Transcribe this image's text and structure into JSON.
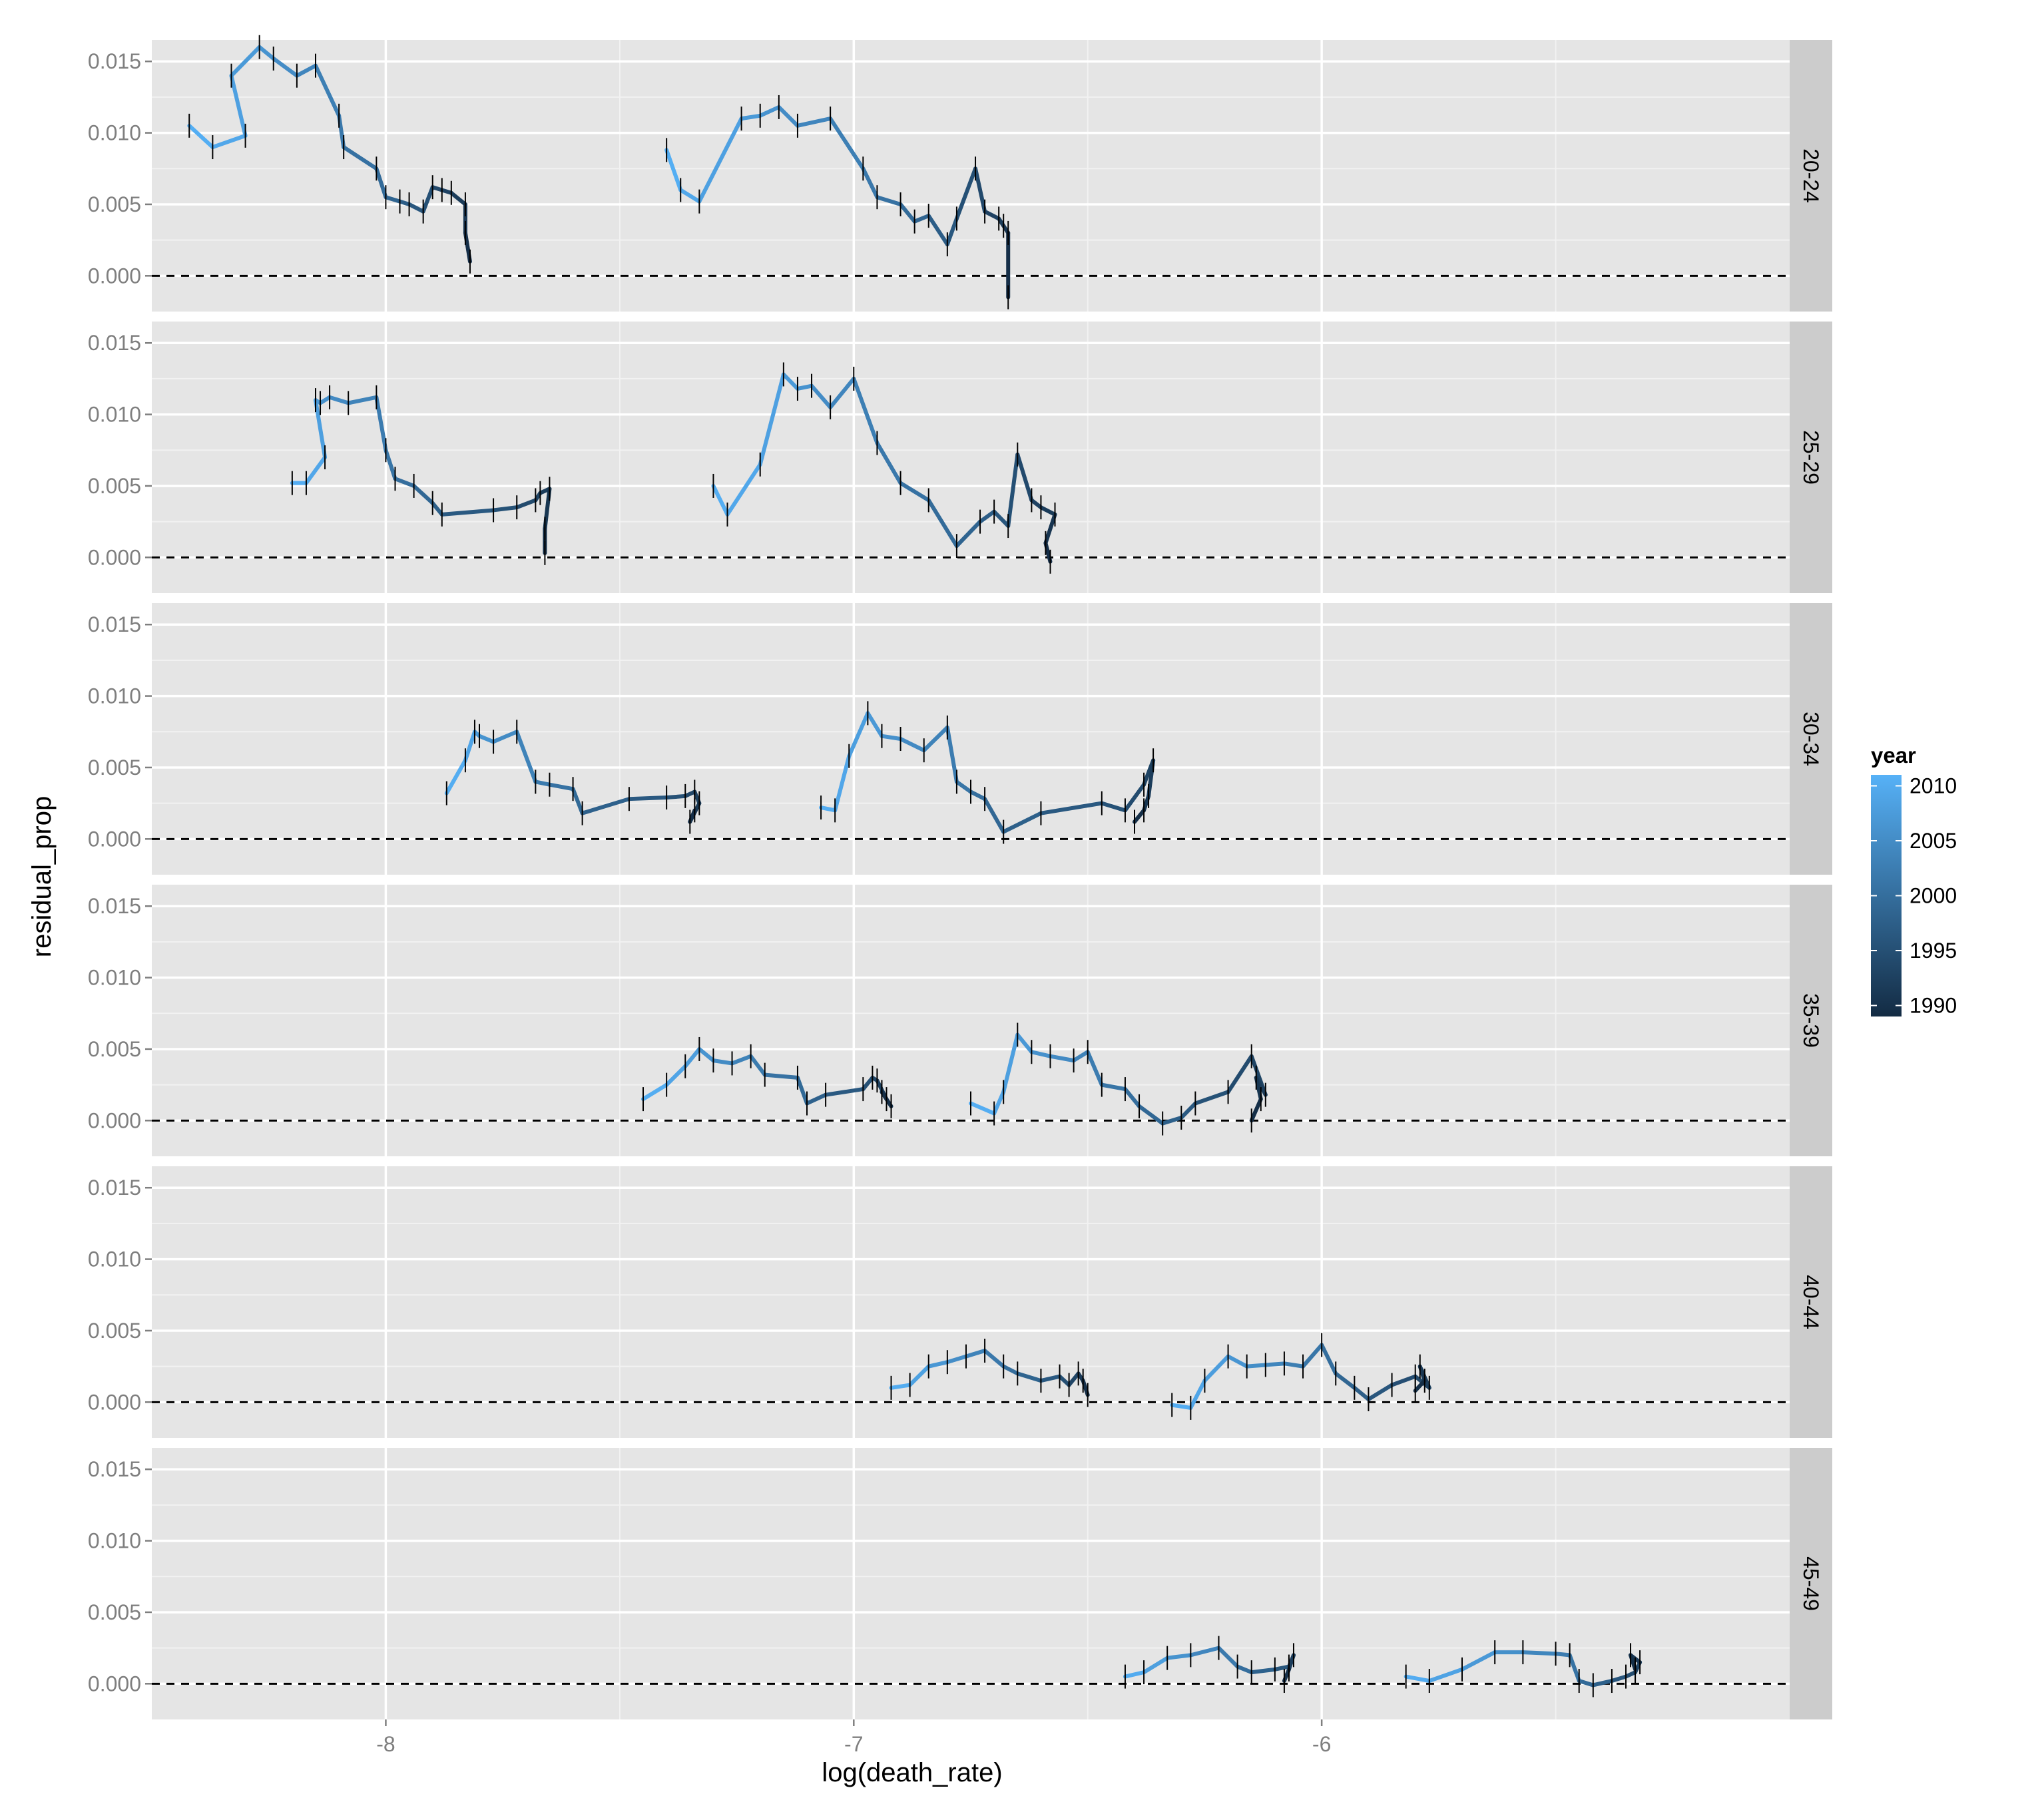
{
  "chart_data": {
    "type": "line",
    "xlabel": "log(death_rate)",
    "ylabel": "residual_prop",
    "xlim": [
      -8.5,
      -5.0
    ],
    "ylim": [
      -0.0025,
      0.0165
    ],
    "x_ticks": [
      -8,
      -7,
      -6
    ],
    "x_tick_labels": [
      "-8",
      "-7",
      "-6"
    ],
    "y_ticks": [
      0.0,
      0.005,
      0.01,
      0.015
    ],
    "y_tick_labels": [
      "0.000",
      "0.005",
      "0.010",
      "0.015"
    ],
    "reference_line": {
      "y": 0,
      "style": "dashed"
    },
    "facet_var": "age_group",
    "facets": [
      "20-24",
      "25-29",
      "30-34",
      "35-39",
      "40-44",
      "45-49"
    ],
    "legend": {
      "title": "year",
      "position": "right",
      "ticks": [
        2010,
        2005,
        2000,
        1995,
        1990
      ],
      "tick_labels": [
        "2010",
        "2005",
        "2000",
        "1995",
        "1990"
      ],
      "color_low": "#132B43",
      "color_high": "#56B1F7",
      "range": [
        1989,
        2011
      ]
    },
    "panels": [
      {
        "facet": "20-24",
        "series": [
          {
            "x": [
              -8.42,
              -8.37,
              -8.3,
              -8.33,
              -8.27,
              -8.24,
              -8.19,
              -8.15,
              -8.1,
              -8.09,
              -8.02,
              -8.0,
              -7.97,
              -7.95,
              -7.92,
              -7.9,
              -7.88,
              -7.86,
              -7.83,
              -7.83,
              -7.82
            ],
            "y": [
              0.0105,
              0.009,
              0.0098,
              0.014,
              0.016,
              0.0152,
              0.014,
              0.0147,
              0.0112,
              0.009,
              0.0075,
              0.0055,
              0.0052,
              0.005,
              0.0045,
              0.0062,
              0.006,
              0.0058,
              0.005,
              0.003,
              0.001
            ]
          },
          {
            "x": [
              -7.4,
              -7.37,
              -7.33,
              -7.24,
              -7.2,
              -7.16,
              -7.12,
              -7.05,
              -6.98,
              -6.95,
              -6.9,
              -6.87,
              -6.84,
              -6.8,
              -6.78,
              -6.74,
              -6.72,
              -6.69,
              -6.68,
              -6.67,
              -6.67
            ],
            "y": [
              0.0088,
              0.006,
              0.0052,
              0.011,
              0.0112,
              0.0118,
              0.0105,
              0.011,
              0.0075,
              0.0055,
              0.005,
              0.0038,
              0.0042,
              0.0022,
              0.004,
              0.0075,
              0.0045,
              0.004,
              0.0035,
              0.003,
              -0.0015
            ]
          }
        ]
      },
      {
        "facet": "25-29",
        "series": [
          {
            "x": [
              -8.2,
              -8.17,
              -8.13,
              -8.15,
              -8.14,
              -8.12,
              -8.08,
              -8.02,
              -8.0,
              -7.98,
              -7.94,
              -7.9,
              -7.88,
              -7.77,
              -7.72,
              -7.68,
              -7.67,
              -7.65,
              -7.66,
              -7.66
            ],
            "y": [
              0.0052,
              0.0052,
              0.007,
              0.011,
              0.0108,
              0.0112,
              0.0108,
              0.0112,
              0.0075,
              0.0055,
              0.005,
              0.0038,
              0.003,
              0.0033,
              0.0035,
              0.004,
              0.0045,
              0.0048,
              0.002,
              0.0003
            ]
          },
          {
            "x": [
              -7.3,
              -7.27,
              -7.2,
              -7.15,
              -7.12,
              -7.09,
              -7.05,
              -7.0,
              -6.95,
              -6.9,
              -6.84,
              -6.78,
              -6.73,
              -6.7,
              -6.67,
              -6.65,
              -6.62,
              -6.6,
              -6.57,
              -6.59,
              -6.58
            ],
            "y": [
              0.005,
              0.003,
              0.0065,
              0.0128,
              0.0118,
              0.012,
              0.0105,
              0.0125,
              0.008,
              0.0052,
              0.004,
              0.0008,
              0.0025,
              0.0032,
              0.0022,
              0.0072,
              0.004,
              0.0035,
              0.003,
              0.001,
              -0.0003
            ]
          }
        ]
      },
      {
        "facet": "30-34",
        "series": [
          {
            "x": [
              -7.87,
              -7.83,
              -7.81,
              -7.8,
              -7.77,
              -7.72,
              -7.68,
              -7.65,
              -7.6,
              -7.58,
              -7.48,
              -7.4,
              -7.36,
              -7.34,
              -7.33,
              -7.35,
              -7.34
            ],
            "y": [
              0.0032,
              0.0055,
              0.0075,
              0.0072,
              0.0068,
              0.0075,
              0.004,
              0.0038,
              0.0035,
              0.0018,
              0.0028,
              0.0029,
              0.003,
              0.0033,
              0.0025,
              0.0012,
              0.002
            ]
          },
          {
            "x": [
              -7.07,
              -7.04,
              -7.01,
              -6.97,
              -6.94,
              -6.9,
              -6.85,
              -6.8,
              -6.78,
              -6.75,
              -6.72,
              -6.68,
              -6.6,
              -6.47,
              -6.42,
              -6.38,
              -6.36,
              -6.37,
              -6.38,
              -6.4
            ],
            "y": [
              0.0022,
              0.002,
              0.0058,
              0.0088,
              0.0072,
              0.007,
              0.0062,
              0.0078,
              0.004,
              0.0033,
              0.0028,
              0.0005,
              0.0018,
              0.0025,
              0.002,
              0.0038,
              0.0055,
              0.003,
              0.002,
              0.0012
            ]
          }
        ]
      },
      {
        "facet": "35-39",
        "series": [
          {
            "x": [
              -7.45,
              -7.4,
              -7.36,
              -7.33,
              -7.3,
              -7.26,
              -7.22,
              -7.19,
              -7.12,
              -7.1,
              -7.06,
              -6.98,
              -6.96,
              -6.95,
              -6.93,
              -6.94,
              -6.92
            ],
            "y": [
              0.0015,
              0.0025,
              0.0038,
              0.005,
              0.0042,
              0.004,
              0.0045,
              0.0032,
              0.003,
              0.0012,
              0.0018,
              0.0022,
              0.003,
              0.0028,
              0.0015,
              0.002,
              0.001
            ]
          },
          {
            "x": [
              -6.75,
              -6.7,
              -6.68,
              -6.65,
              -6.62,
              -6.58,
              -6.53,
              -6.5,
              -6.47,
              -6.42,
              -6.39,
              -6.34,
              -6.3,
              -6.27,
              -6.2,
              -6.15,
              -6.12,
              -6.14,
              -6.13,
              -6.15
            ],
            "y": [
              0.0012,
              0.0005,
              0.002,
              0.006,
              0.0048,
              0.0045,
              0.0042,
              0.0048,
              0.0025,
              0.0022,
              0.001,
              -0.0002,
              0.0002,
              0.0012,
              0.002,
              0.0045,
              0.0018,
              0.003,
              0.0015,
              0.0
            ]
          }
        ]
      },
      {
        "facet": "40-44",
        "series": [
          {
            "x": [
              -6.92,
              -6.88,
              -6.84,
              -6.8,
              -6.76,
              -6.72,
              -6.68,
              -6.65,
              -6.6,
              -6.56,
              -6.54,
              -6.52,
              -6.51,
              -6.5
            ],
            "y": [
              0.001,
              0.0012,
              0.0025,
              0.0028,
              0.0032,
              0.0036,
              0.0025,
              0.002,
              0.0015,
              0.0018,
              0.0012,
              0.002,
              0.0015,
              0.0005
            ]
          },
          {
            "x": [
              -6.32,
              -6.28,
              -6.25,
              -6.2,
              -6.16,
              -6.12,
              -6.08,
              -6.04,
              -6.0,
              -5.97,
              -5.93,
              -5.9,
              -5.85,
              -5.8,
              -5.77,
              -5.79,
              -5.78,
              -5.8
            ],
            "y": [
              -0.0002,
              -0.0004,
              0.0015,
              0.0032,
              0.0025,
              0.0026,
              0.0027,
              0.0025,
              0.004,
              0.002,
              0.001,
              0.0002,
              0.0012,
              0.0018,
              0.001,
              0.0025,
              0.0015,
              0.0008
            ]
          }
        ]
      },
      {
        "facet": "45-49",
        "series": [
          {
            "x": [
              -6.42,
              -6.38,
              -6.33,
              -6.28,
              -6.22,
              -6.18,
              -6.15,
              -6.1,
              -6.07,
              -6.06,
              -6.07,
              -6.08
            ],
            "y": [
              0.0005,
              0.0008,
              0.0018,
              0.002,
              0.0025,
              0.0012,
              0.0008,
              0.001,
              0.0012,
              0.002,
              0.001,
              0.0002
            ]
          },
          {
            "x": [
              -5.82,
              -5.77,
              -5.7,
              -5.63,
              -5.57,
              -5.5,
              -5.47,
              -5.45,
              -5.42,
              -5.38,
              -5.35,
              -5.33,
              -5.32,
              -5.34,
              -5.33
            ],
            "y": [
              0.0005,
              0.0002,
              0.001,
              0.0022,
              0.0022,
              0.0021,
              0.002,
              0.0002,
              -0.0001,
              0.0002,
              0.0005,
              0.0008,
              0.0015,
              0.002,
              0.001
            ]
          }
        ]
      }
    ]
  }
}
